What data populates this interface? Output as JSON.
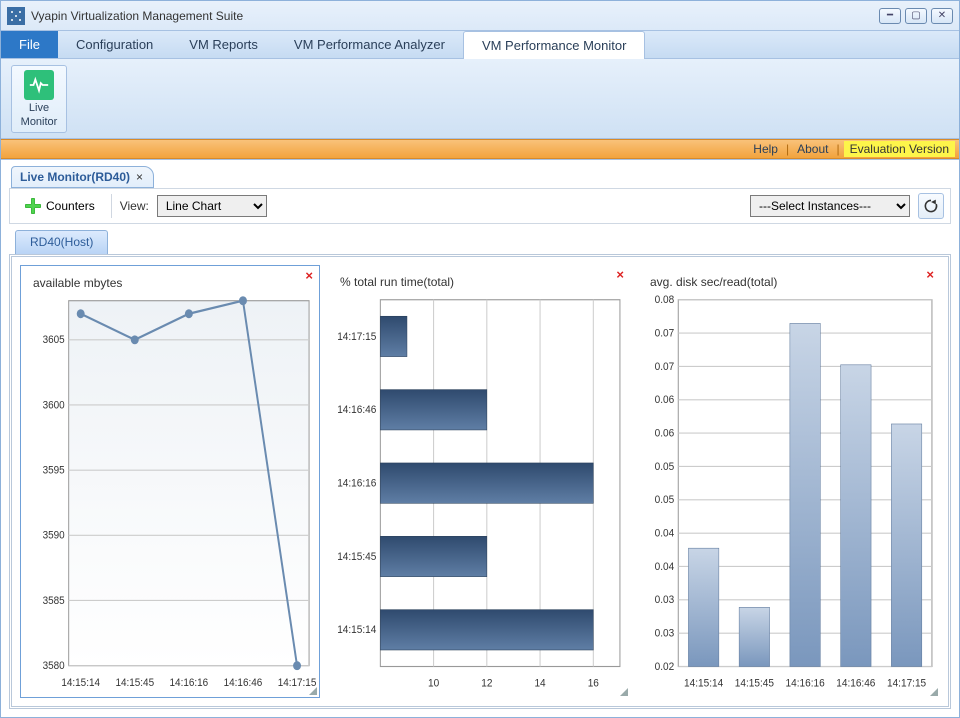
{
  "window": {
    "title": "Vyapin Virtualization Management Suite"
  },
  "menu": {
    "file": "File",
    "tabs": [
      "Configuration",
      "VM Reports",
      "VM Performance Analyzer",
      "VM Performance Monitor"
    ],
    "active_index": 3
  },
  "ribbon": {
    "live_monitor": {
      "line1": "Live",
      "line2": "Monitor"
    }
  },
  "strip": {
    "help": "Help",
    "about": "About",
    "eval": "Evaluation Version"
  },
  "doc_tab": {
    "label": "Live Monitor(RD40)"
  },
  "toolbar": {
    "counters_label": "Counters",
    "view_label": "View:",
    "view_value": "Line Chart",
    "instance_value": "---Select Instances---"
  },
  "host_tab": "RD40(Host)",
  "charts": {
    "c1": {
      "type": "line",
      "title": "available mbytes",
      "x_labels": [
        "14:15:14",
        "14:15:45",
        "14:16:16",
        "14:16:46",
        "14:17:15"
      ],
      "y_ticks": [
        3580,
        3585,
        3590,
        3595,
        3600,
        3605
      ],
      "ylim": [
        3580,
        3608
      ],
      "values": [
        3607,
        3605,
        3607,
        3608,
        3580
      ],
      "line_color": "#6a8bb0",
      "dot_color": "#6a8bb0",
      "background_color": "#ffffff",
      "grid_color": "#cccccc",
      "plot_fill_top": "#eef2f6",
      "plot_fill_bottom": "#ffffff"
    },
    "c2": {
      "type": "hbar",
      "title": "% total run time(total)",
      "y_labels": [
        "14:17:15",
        "14:16:46",
        "14:16:16",
        "14:15:45",
        "14:15:14"
      ],
      "x_ticks": [
        10,
        12,
        14,
        16
      ],
      "xlim": [
        8,
        17
      ],
      "values": [
        9,
        12,
        16,
        12,
        16
      ],
      "bar_color_top": "#2f4a6e",
      "bar_color_bottom": "#5f7ea5",
      "grid_color": "#cccccc"
    },
    "c3": {
      "type": "bar",
      "title": "avg. disk sec/read(total)",
      "x_labels": [
        "14:15:14",
        "14:15:45",
        "14:16:16",
        "14:16:46",
        "14:17:15"
      ],
      "y_ticks": [
        0.02,
        0.03,
        0.03,
        0.04,
        0.04,
        0.05,
        0.05,
        0.06,
        0.06,
        0.07,
        0.07,
        0.08
      ],
      "y_tick_labels": [
        "0.02",
        "0.03",
        "0.03",
        "0.04",
        "0.04",
        "0.05",
        "0.05",
        "0.06",
        "0.06",
        "0.07",
        "0.07",
        "0.08"
      ],
      "ylim": [
        0.02,
        0.082
      ],
      "values": [
        0.04,
        0.03,
        0.078,
        0.071,
        0.061
      ],
      "bar_color_top": "#c8d5e6",
      "bar_color_bottom": "#7a97bd",
      "grid_color": "#cccccc"
    }
  },
  "colors": {
    "accent": "#2d78c7",
    "orange_strip": "#f2a33d",
    "eval_bg": "#fdf54a",
    "plus_green": "#2aa52a",
    "ribbon_green": "#2ec07a"
  }
}
